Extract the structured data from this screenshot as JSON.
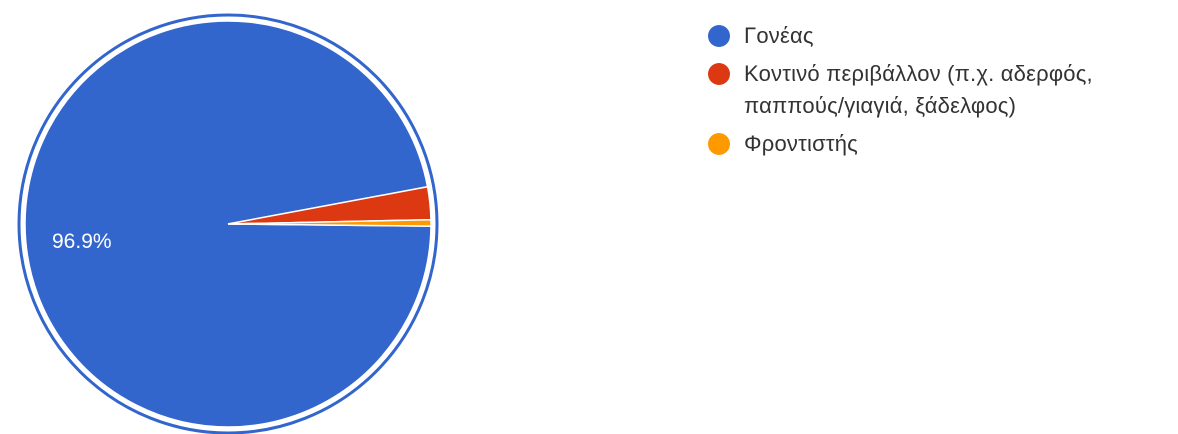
{
  "chart_data": {
    "type": "pie",
    "slices": [
      {
        "label": "Γονέας",
        "value": 96.9,
        "color": "#3366cc",
        "data_label": "96.9%"
      },
      {
        "label": "Κοντινό περιβάλλον (π.χ. αδερφός, παππούς/γιαγιά, ξάδελφος)",
        "value": 2.6,
        "color": "#dc3912",
        "data_label": ""
      },
      {
        "label": "Φροντιστής",
        "value": 0.5,
        "color": "#ff9900",
        "data_label": ""
      }
    ],
    "legend_position": "right",
    "highlight_ring": true
  }
}
